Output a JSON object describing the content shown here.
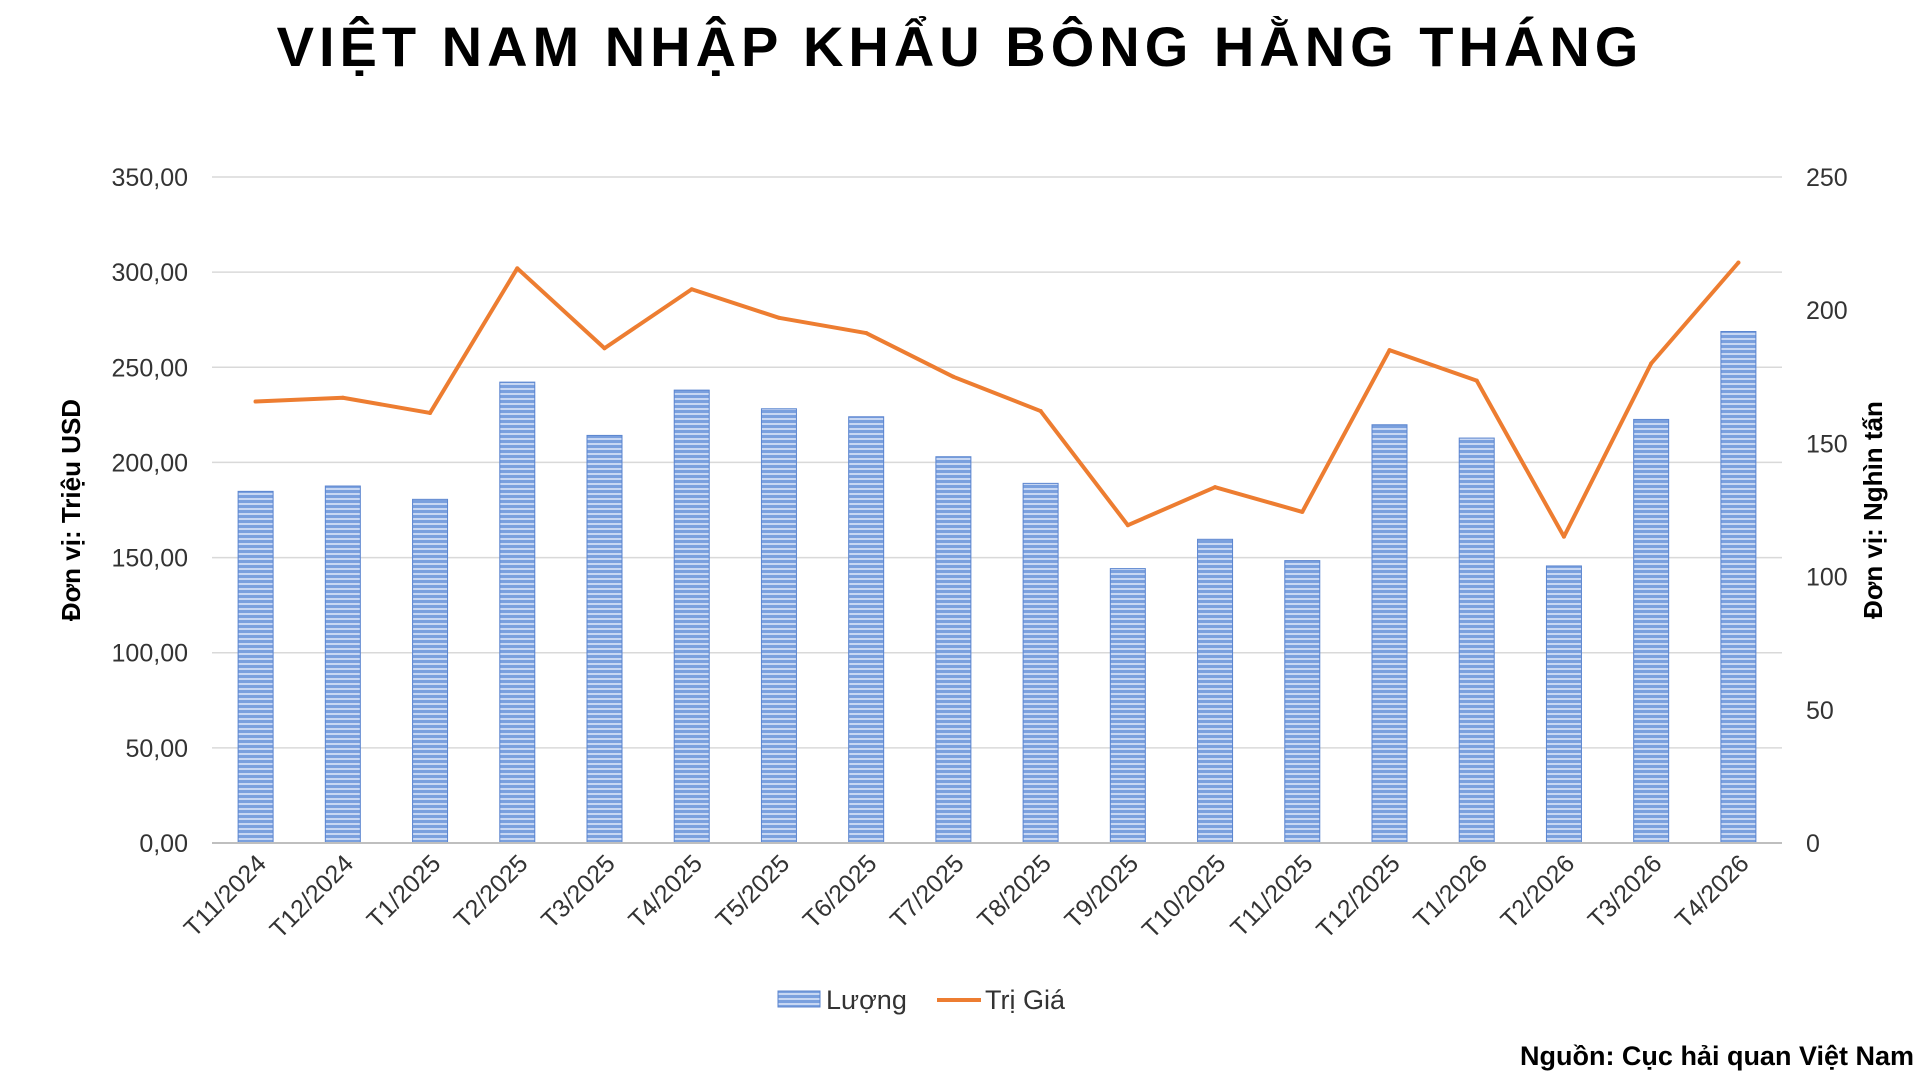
{
  "chart_data": {
    "type": "bar",
    "title": "VIỆT NAM NHẬP KHẨU BÔNG HẰNG THÁNG",
    "categories": [
      "T11/2024",
      "T12/2024",
      "T1/2025",
      "T2/2025",
      "T3/2025",
      "T4/2025",
      "T5/2025",
      "T6/2025",
      "T7/2025",
      "T8/2025",
      "T9/2025",
      "T10/2025",
      "T11/2025",
      "T12/2025",
      "T1/2026",
      "T2/2026",
      "T3/2026",
      "T4/2026"
    ],
    "series": [
      {
        "name": "Lượng",
        "type": "bar",
        "axis": "right",
        "color": "#4472C4",
        "values": [
          132,
          134,
          129,
          173,
          153,
          170,
          163,
          160,
          145,
          135,
          103,
          114,
          106,
          157,
          152,
          104,
          159,
          192
        ]
      },
      {
        "name": "Trị Giá",
        "type": "line",
        "axis": "left",
        "color": "#ED7D31",
        "values": [
          232,
          234,
          226,
          302,
          260,
          291,
          276,
          268,
          245,
          227,
          167,
          187,
          174,
          259,
          243,
          161,
          252,
          305
        ]
      }
    ],
    "ylabel_left": "Đơn vị: Triệu USD",
    "ylabel_right": "Đơn vị: Nghìn tấn",
    "ylim_left": [
      0,
      350
    ],
    "ylim_right": [
      0,
      250
    ],
    "yticks_left": [
      "0,00",
      "50,00",
      "100,00",
      "150,00",
      "200,00",
      "250,00",
      "300,00",
      "350,00"
    ],
    "yticks_right": [
      "0",
      "50",
      "100",
      "150",
      "200",
      "250"
    ],
    "grid": true,
    "legend_position": "bottom",
    "source": "Nguồn: Cục hải quan Việt Nam"
  }
}
